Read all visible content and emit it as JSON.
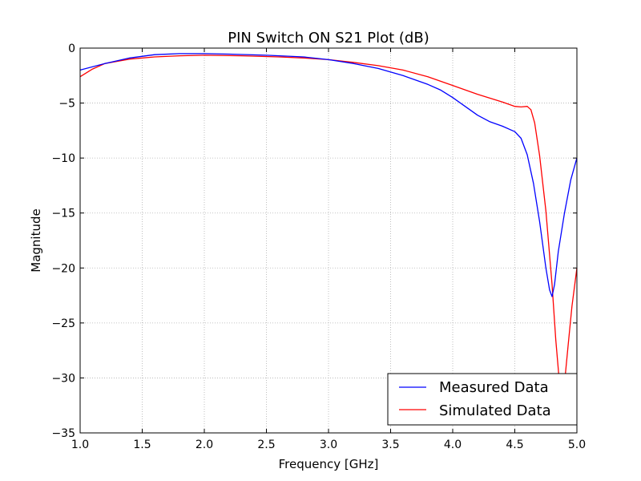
{
  "chart_data": {
    "type": "line",
    "title": "PIN Switch ON S21 Plot (dB)",
    "xlabel": "Frequency [GHz]",
    "ylabel": "Magnitude",
    "xlim": [
      1.0,
      5.0
    ],
    "ylim": [
      -35,
      0
    ],
    "xticks": [
      1.0,
      1.5,
      2.0,
      2.5,
      3.0,
      3.5,
      4.0,
      4.5,
      5.0
    ],
    "xtick_labels": [
      "1.0",
      "1.5",
      "2.0",
      "2.5",
      "3.0",
      "3.5",
      "4.0",
      "4.5",
      "5.0"
    ],
    "yticks": [
      0,
      -5,
      -10,
      -15,
      -20,
      -25,
      -30,
      -35
    ],
    "ytick_labels": [
      "0",
      "−5",
      "−10",
      "−15",
      "−20",
      "−25",
      "−30",
      "−35"
    ],
    "grid": true,
    "legend_position": "bottom-right",
    "series": [
      {
        "name": "Measured Data",
        "color": "#0000ff",
        "x": [
          1.0,
          1.2,
          1.4,
          1.6,
          1.8,
          2.0,
          2.2,
          2.5,
          2.8,
          3.0,
          3.2,
          3.4,
          3.6,
          3.8,
          3.9,
          4.0,
          4.1,
          4.2,
          4.3,
          4.4,
          4.5,
          4.55,
          4.6,
          4.65,
          4.7,
          4.75,
          4.78,
          4.8,
          4.82,
          4.85,
          4.9,
          4.95,
          5.0
        ],
        "y": [
          -2.0,
          -1.4,
          -0.9,
          -0.6,
          -0.5,
          -0.5,
          -0.55,
          -0.65,
          -0.8,
          -1.05,
          -1.4,
          -1.85,
          -2.5,
          -3.3,
          -3.8,
          -4.5,
          -5.3,
          -6.1,
          -6.7,
          -7.1,
          -7.6,
          -8.2,
          -9.7,
          -12.3,
          -15.8,
          -20.0,
          -22.0,
          -22.6,
          -21.5,
          -18.5,
          -15.0,
          -12.0,
          -10.0
        ]
      },
      {
        "name": "Simulated Data",
        "color": "#ff0000",
        "x": [
          1.0,
          1.1,
          1.2,
          1.4,
          1.6,
          1.8,
          2.0,
          2.3,
          2.6,
          2.8,
          3.0,
          3.2,
          3.4,
          3.6,
          3.8,
          4.0,
          4.2,
          4.4,
          4.5,
          4.55,
          4.6,
          4.63,
          4.66,
          4.7,
          4.75,
          4.8,
          4.83,
          4.86,
          4.88,
          4.9,
          4.93,
          4.96,
          5.0
        ],
        "y": [
          -2.6,
          -1.9,
          -1.4,
          -1.0,
          -0.8,
          -0.7,
          -0.65,
          -0.7,
          -0.8,
          -0.9,
          -1.05,
          -1.3,
          -1.6,
          -2.0,
          -2.6,
          -3.4,
          -4.2,
          -4.9,
          -5.3,
          -5.35,
          -5.3,
          -5.6,
          -6.8,
          -9.8,
          -14.8,
          -21.5,
          -26.5,
          -30.5,
          -31.5,
          -30.5,
          -27.0,
          -23.5,
          -20.0
        ]
      }
    ]
  }
}
